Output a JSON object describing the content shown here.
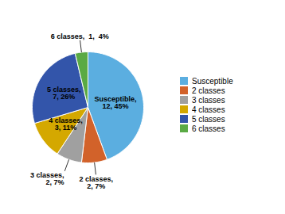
{
  "chart_data": {
    "type": "pie",
    "categories": [
      "Susceptible",
      "2 classes",
      "3 classes",
      "4 classes",
      "5 classes",
      "6 classes"
    ],
    "values": [
      12,
      2,
      2,
      3,
      7,
      1
    ],
    "value_labels": [
      "Susceptible,\n12, 45%",
      "2 classes,\n2, 7%",
      "3 classes,\n2, 7%",
      "4 classes,\n3, 11%",
      "5 classes,\n7, 26%",
      "6 classes,  1,  4%"
    ],
    "colors": [
      "#5baee0",
      "#d2622a",
      "#a0a0a0",
      "#d4a800",
      "#3355aa",
      "#5aaa44"
    ],
    "data_labels": true,
    "legend": "right"
  }
}
